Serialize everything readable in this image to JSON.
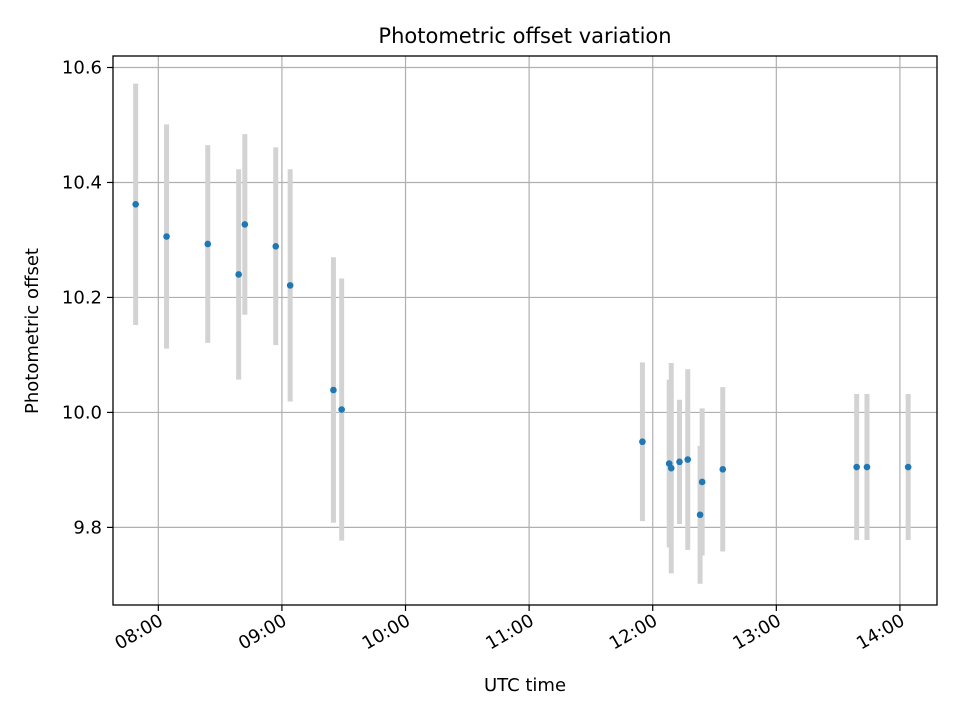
{
  "chart_data": {
    "type": "scatter",
    "title": "Photometric offset variation",
    "xlabel": "UTC time",
    "ylabel": "Photometric offset",
    "x_tick_labels": [
      "08:00",
      "09:00",
      "10:00",
      "11:00",
      "12:00",
      "13:00",
      "14:00"
    ],
    "x_ticks": [
      "08:00",
      "09:00",
      "10:00",
      "11:00",
      "12:00",
      "13:00",
      "14:00"
    ],
    "y_ticks": [
      9.8,
      10.0,
      10.2,
      10.4,
      10.6
    ],
    "y_tick_labels": [
      "9.8",
      "10.0",
      "10.2",
      "10.4",
      "10.6"
    ],
    "xlim": [
      "07:38",
      "14:18"
    ],
    "ylim": [
      9.665,
      10.62
    ],
    "grid": true,
    "point_color": "#1f77b4",
    "errorbar_color": "#d3d3d3",
    "series": [
      {
        "points": [
          {
            "x": "07:49",
            "y": 10.362,
            "err": 0.21
          },
          {
            "x": "08:04",
            "y": 10.306,
            "err": 0.195
          },
          {
            "x": "08:24",
            "y": 10.293,
            "err": 0.172
          },
          {
            "x": "08:39",
            "y": 10.24,
            "err": 0.183
          },
          {
            "x": "08:42",
            "y": 10.327,
            "err": 0.157
          },
          {
            "x": "08:57",
            "y": 10.289,
            "err": 0.172
          },
          {
            "x": "09:04",
            "y": 10.221,
            "err": 0.202
          },
          {
            "x": "09:25",
            "y": 10.039,
            "err": 0.231
          },
          {
            "x": "09:29",
            "y": 10.005,
            "err": 0.228
          },
          {
            "x": "11:55",
            "y": 9.949,
            "err": 0.138
          },
          {
            "x": "12:08",
            "y": 9.911,
            "err": 0.146
          },
          {
            "x": "12:09",
            "y": 9.903,
            "err": 0.183
          },
          {
            "x": "12:13",
            "y": 9.914,
            "err": 0.108
          },
          {
            "x": "12:17",
            "y": 9.918,
            "err": 0.157
          },
          {
            "x": "12:23",
            "y": 9.822,
            "err": 0.12
          },
          {
            "x": "12:24",
            "y": 9.879,
            "err": 0.128
          },
          {
            "x": "12:34",
            "y": 9.901,
            "err": 0.143
          },
          {
            "x": "13:39",
            "y": 9.905,
            "err": 0.127
          },
          {
            "x": "13:44",
            "y": 9.905,
            "err": 0.127
          },
          {
            "x": "14:04",
            "y": 9.905,
            "err": 0.127
          }
        ]
      }
    ]
  }
}
